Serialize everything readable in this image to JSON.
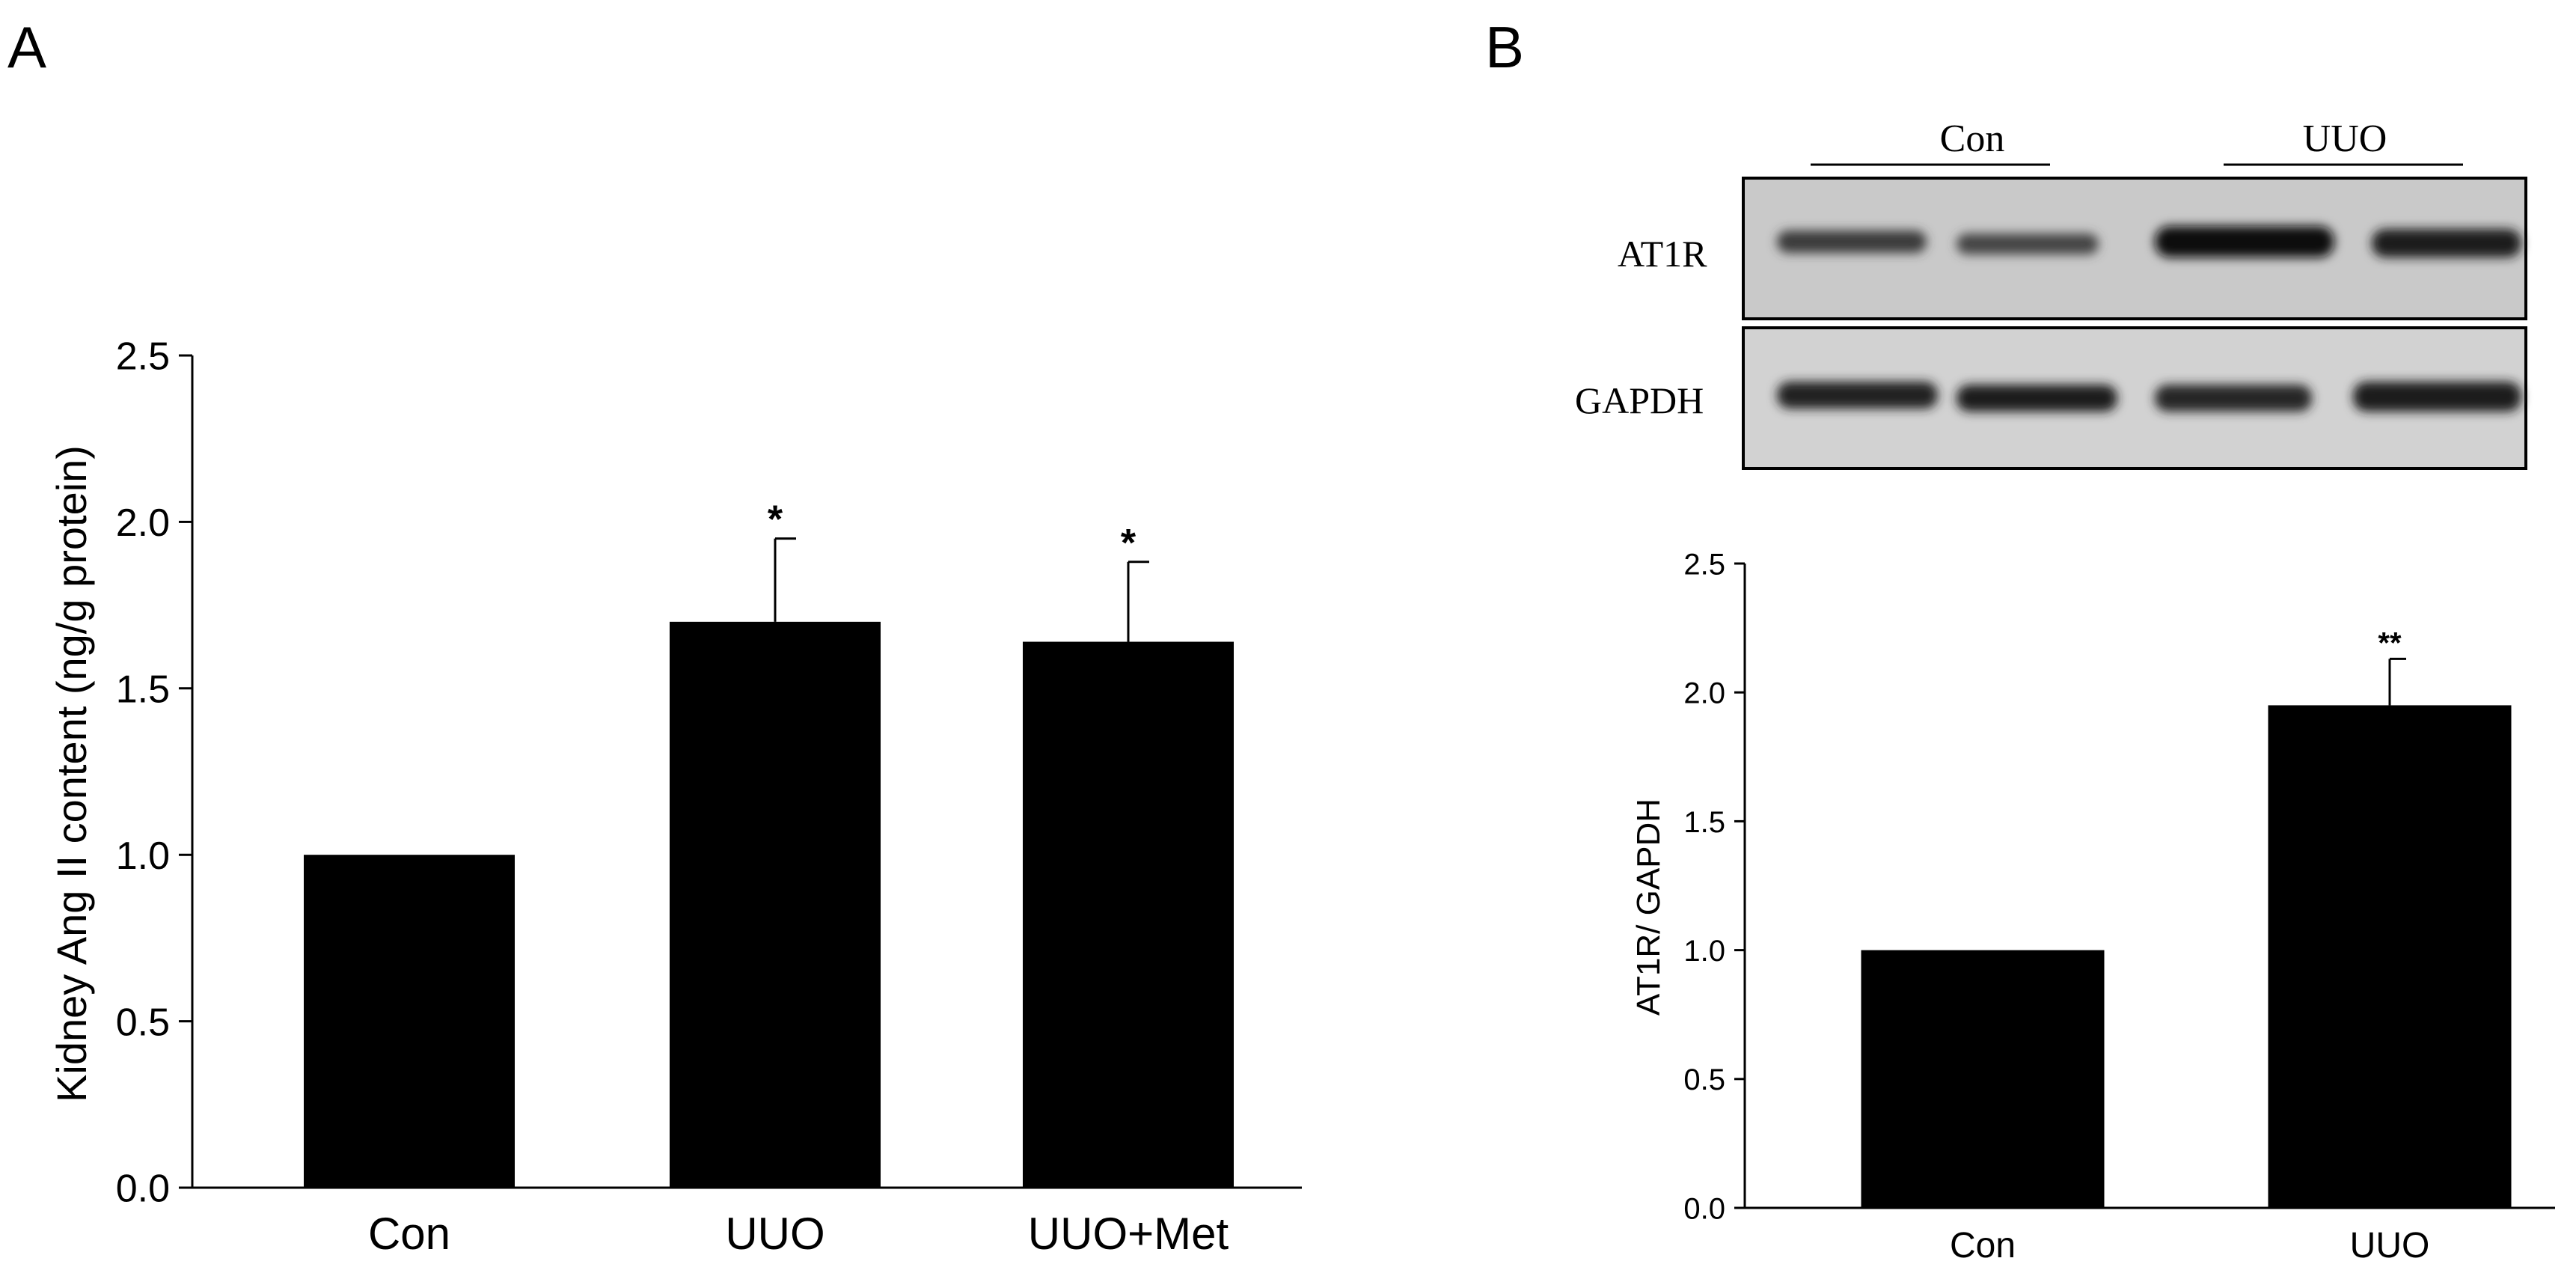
{
  "panel_a": {
    "letter": "A",
    "chart_data": {
      "type": "bar",
      "categories": [
        "Con",
        "UUO",
        "UUO+Met"
      ],
      "values": [
        1.0,
        1.7,
        1.64
      ],
      "errors": [
        0,
        0.25,
        0.24
      ],
      "significance": [
        "",
        "*",
        "*"
      ],
      "ylabel": "Kidney Ang II content (ng/g protein)",
      "xlabel": "",
      "ylim": [
        0,
        2.5
      ],
      "yticks": [
        "0.0",
        "0.5",
        "1.0",
        "1.5",
        "2.0",
        "2.5"
      ],
      "bar_color": "#000000"
    }
  },
  "panel_b": {
    "letter": "B",
    "blot": {
      "group_labels": [
        "Con",
        "UUO"
      ],
      "row_labels": [
        "AT1R",
        "GAPDH"
      ]
    },
    "chart_data": {
      "type": "bar",
      "categories": [
        "Con",
        "UUO"
      ],
      "values": [
        1.0,
        1.95
      ],
      "errors": [
        0,
        0.18
      ],
      "significance": [
        "",
        "**"
      ],
      "ylabel": "AT1R/ GAPDH",
      "xlabel": "",
      "ylim": [
        0,
        2.5
      ],
      "yticks": [
        "0.0",
        "0.5",
        "1.0",
        "1.5",
        "2.0",
        "2.5"
      ],
      "bar_color": "#000000"
    }
  }
}
